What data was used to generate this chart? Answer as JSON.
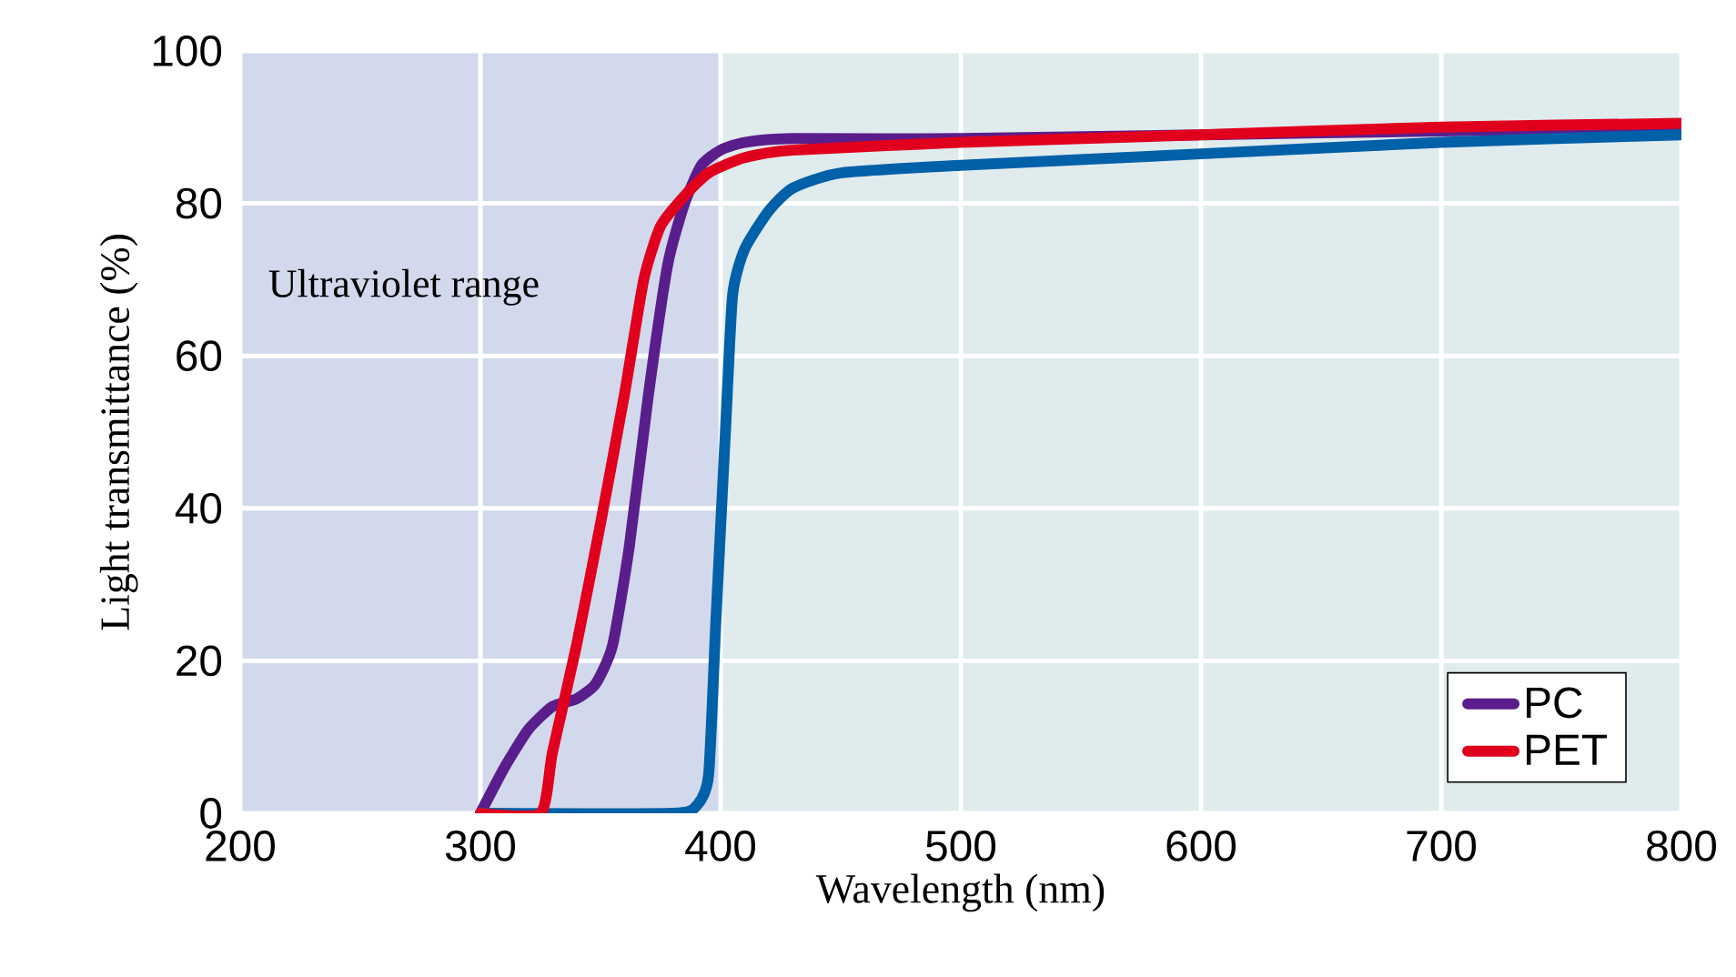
{
  "chart_data": {
    "type": "line",
    "xlabel": "Wavelength (nm)",
    "ylabel": "Light transmittance (%)",
    "xlim": [
      200,
      800
    ],
    "xticks": [
      200,
      300,
      400,
      500,
      600,
      700,
      800
    ],
    "ylim": [
      0,
      100
    ],
    "yticks": [
      0,
      20,
      40,
      60,
      80,
      100
    ],
    "grid": true,
    "legend": "bottom right",
    "marker": "none",
    "line_style": "solid",
    "bands": [
      {
        "axis": "x",
        "from": 200,
        "to": 400,
        "label": "Ultraviolet range",
        "color": "#d3d9ec"
      }
    ],
    "series": [
      {
        "name": "PC",
        "color": "#5a1e8c",
        "x": [
          300,
          310,
          320,
          330,
          340,
          348,
          355,
          362,
          370,
          378,
          385,
          392,
          400,
          410,
          430,
          500,
          600,
          700,
          800
        ],
        "values": [
          0,
          6,
          11,
          14,
          15,
          17,
          22,
          35,
          55,
          72,
          80,
          85,
          87,
          88,
          88.5,
          88.5,
          89,
          89.5,
          90
        ]
      },
      {
        "color": "#0060a8",
        "x": [
          300,
          380,
          390,
          395,
          398,
          402,
          405,
          410,
          420,
          430,
          450,
          500,
          600,
          700,
          800
        ],
        "values": [
          0,
          0,
          1,
          5,
          25,
          50,
          68,
          74,
          79,
          82,
          84,
          85,
          86.5,
          88,
          89
        ]
      },
      {
        "name": "PET",
        "color": "#e0001e",
        "x": [
          300,
          325,
          330,
          340,
          350,
          360,
          368,
          375,
          385,
          395,
          410,
          430,
          500,
          600,
          700,
          800
        ],
        "values": [
          0,
          0,
          8,
          22,
          38,
          55,
          70,
          77,
          81,
          84,
          86,
          87,
          88,
          89,
          90,
          90.5
        ]
      }
    ]
  }
}
